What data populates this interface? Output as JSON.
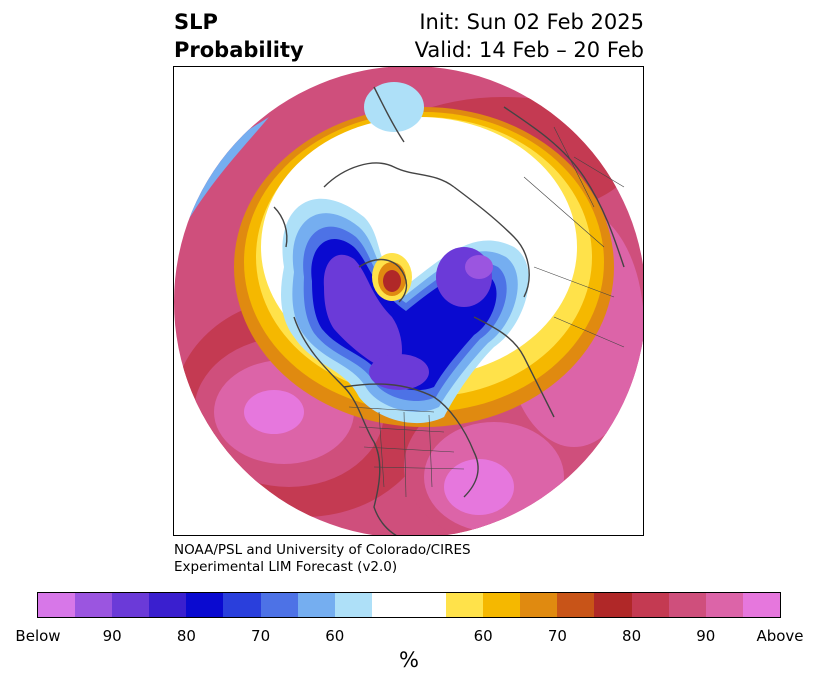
{
  "title": {
    "left_line1": "SLP",
    "left_line2": "Probability",
    "right_line1": "Init: Sun 02 Feb 2025",
    "right_line2": "Valid: 14 Feb – 20 Feb"
  },
  "credit": {
    "line1": "NOAA/PSL and University of Colorado/CIRES",
    "line2": "Experimental LIM Forecast (v2.0)"
  },
  "colorbar": {
    "unit": "%",
    "tick_labels": [
      "Below",
      "90",
      "80",
      "70",
      "60",
      "60",
      "70",
      "80",
      "90",
      "Above"
    ],
    "colors": [
      "#d777e8",
      "#9b55e0",
      "#6b3ad8",
      "#3a1fcf",
      "#0a0ad0",
      "#2a3fdc",
      "#4d72e6",
      "#75aef0",
      "#aee0f8",
      "#ffffff",
      "#ffe24a",
      "#f5b800",
      "#e08a10",
      "#c85418",
      "#b02828",
      "#c43a52",
      "#cf4f7c",
      "#dc64a8",
      "#e677dd"
    ]
  },
  "map": {
    "variable": "SLP",
    "projection": "north polar stereographic",
    "colors": {
      "above_high": "#e677dd",
      "above_mid": "#cf4f7c",
      "above_low": "#b02828",
      "above_weak": "#f5b800",
      "below_high": "#6b3ad8",
      "below_mid": "#0a0ad0",
      "below_weak": "#75aef0",
      "neutral": "#ffffff",
      "coast": "#444444"
    }
  }
}
